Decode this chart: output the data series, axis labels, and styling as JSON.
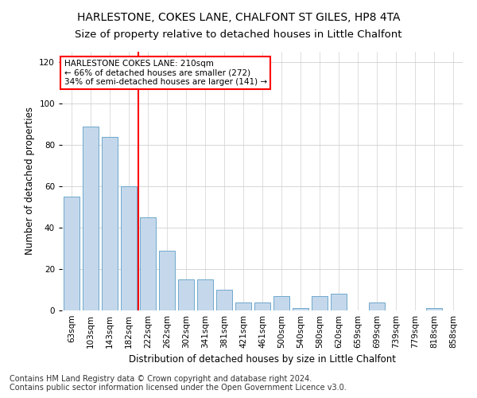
{
  "title1": "HARLESTONE, COKES LANE, CHALFONT ST GILES, HP8 4TA",
  "title2": "Size of property relative to detached houses in Little Chalfont",
  "xlabel": "Distribution of detached houses by size in Little Chalfont",
  "ylabel": "Number of detached properties",
  "footnote1": "Contains HM Land Registry data © Crown copyright and database right 2024.",
  "footnote2": "Contains public sector information licensed under the Open Government Licence v3.0.",
  "annotation_line1": "HARLESTONE COKES LANE: 210sqm",
  "annotation_line2": "← 66% of detached houses are smaller (272)",
  "annotation_line3": "34% of semi-detached houses are larger (141) →",
  "categories": [
    "63sqm",
    "103sqm",
    "143sqm",
    "182sqm",
    "222sqm",
    "262sqm",
    "302sqm",
    "341sqm",
    "381sqm",
    "421sqm",
    "461sqm",
    "500sqm",
    "540sqm",
    "580sqm",
    "620sqm",
    "659sqm",
    "699sqm",
    "739sqm",
    "779sqm",
    "818sqm",
    "858sqm"
  ],
  "values": [
    55,
    89,
    84,
    60,
    45,
    29,
    15,
    15,
    10,
    4,
    4,
    7,
    1,
    7,
    8,
    0,
    4,
    0,
    0,
    1,
    0
  ],
  "bar_color": "#c5d8eb",
  "bar_edge_color": "#6ea8cc",
  "vline_index": 4,
  "vline_color": "red",
  "ylim": [
    0,
    125
  ],
  "yticks": [
    0,
    20,
    40,
    60,
    80,
    100,
    120
  ],
  "background_color": "#ffffff",
  "grid_color": "#d0d0d0",
  "annotation_box_color": "white",
  "annotation_box_edge_color": "red",
  "title_fontsize": 10,
  "subtitle_fontsize": 9.5,
  "axis_label_fontsize": 8.5,
  "tick_fontsize": 7.5,
  "annotation_fontsize": 7.5,
  "footnote_fontsize": 7
}
